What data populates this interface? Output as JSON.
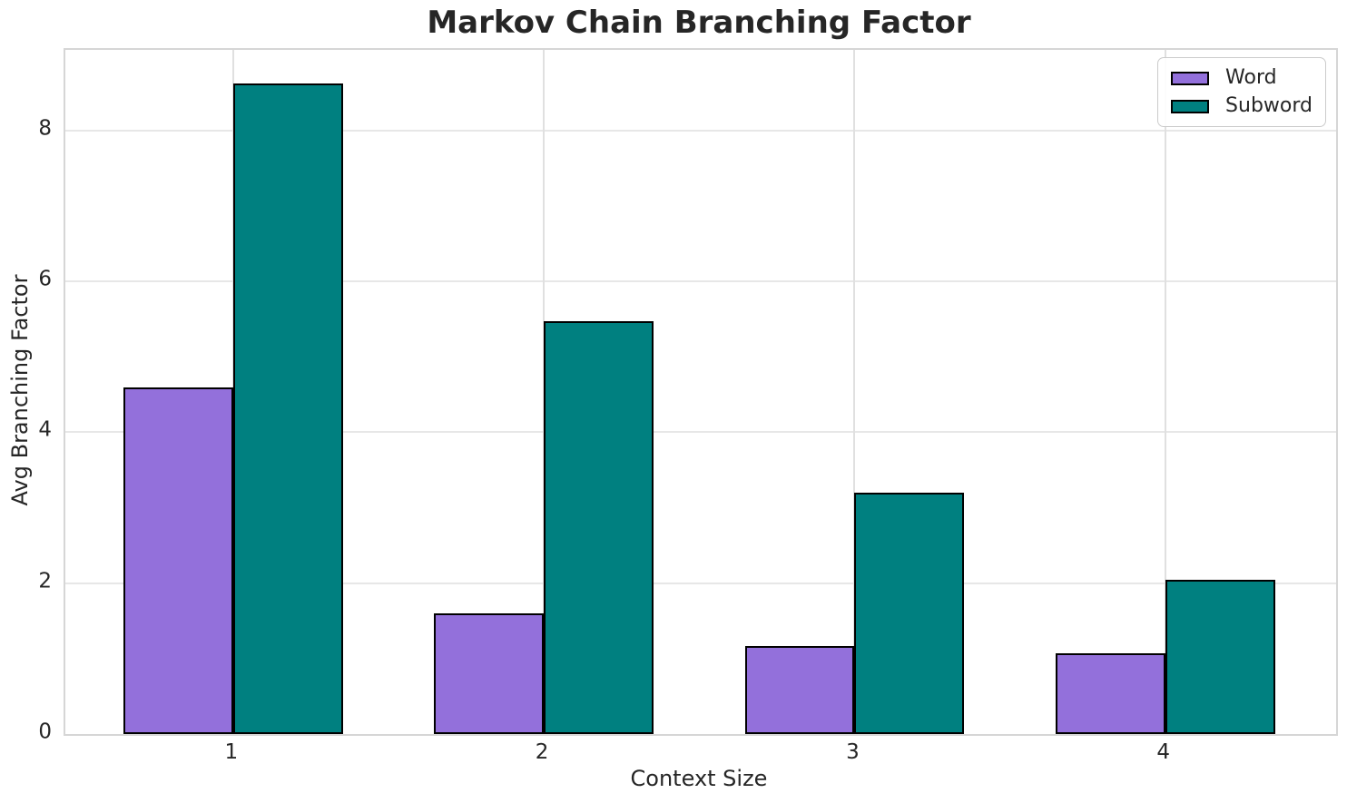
{
  "chart_data": {
    "type": "bar",
    "title": "Markov Chain Branching Factor",
    "xlabel": "Context Size",
    "ylabel": "Avg Branching Factor",
    "categories": [
      "1",
      "2",
      "3",
      "4"
    ],
    "series": [
      {
        "name": "Word",
        "color": "#9370DB",
        "values": [
          4.59,
          1.6,
          1.17,
          1.07
        ]
      },
      {
        "name": "Subword",
        "color": "#008080",
        "values": [
          8.63,
          5.47,
          3.2,
          2.04
        ]
      }
    ],
    "yticks": [
      0,
      2,
      4,
      6,
      8
    ],
    "ylim": [
      0,
      9.07
    ],
    "xlim": [
      0.46,
      4.55
    ],
    "bar_width_units": 0.353,
    "grid": true,
    "legend_position": "upper right",
    "bar_edge_color": "#000000",
    "text_color": "#262626",
    "grid_color": "#e4e4e4",
    "spine_color": "#d6d6d6"
  }
}
